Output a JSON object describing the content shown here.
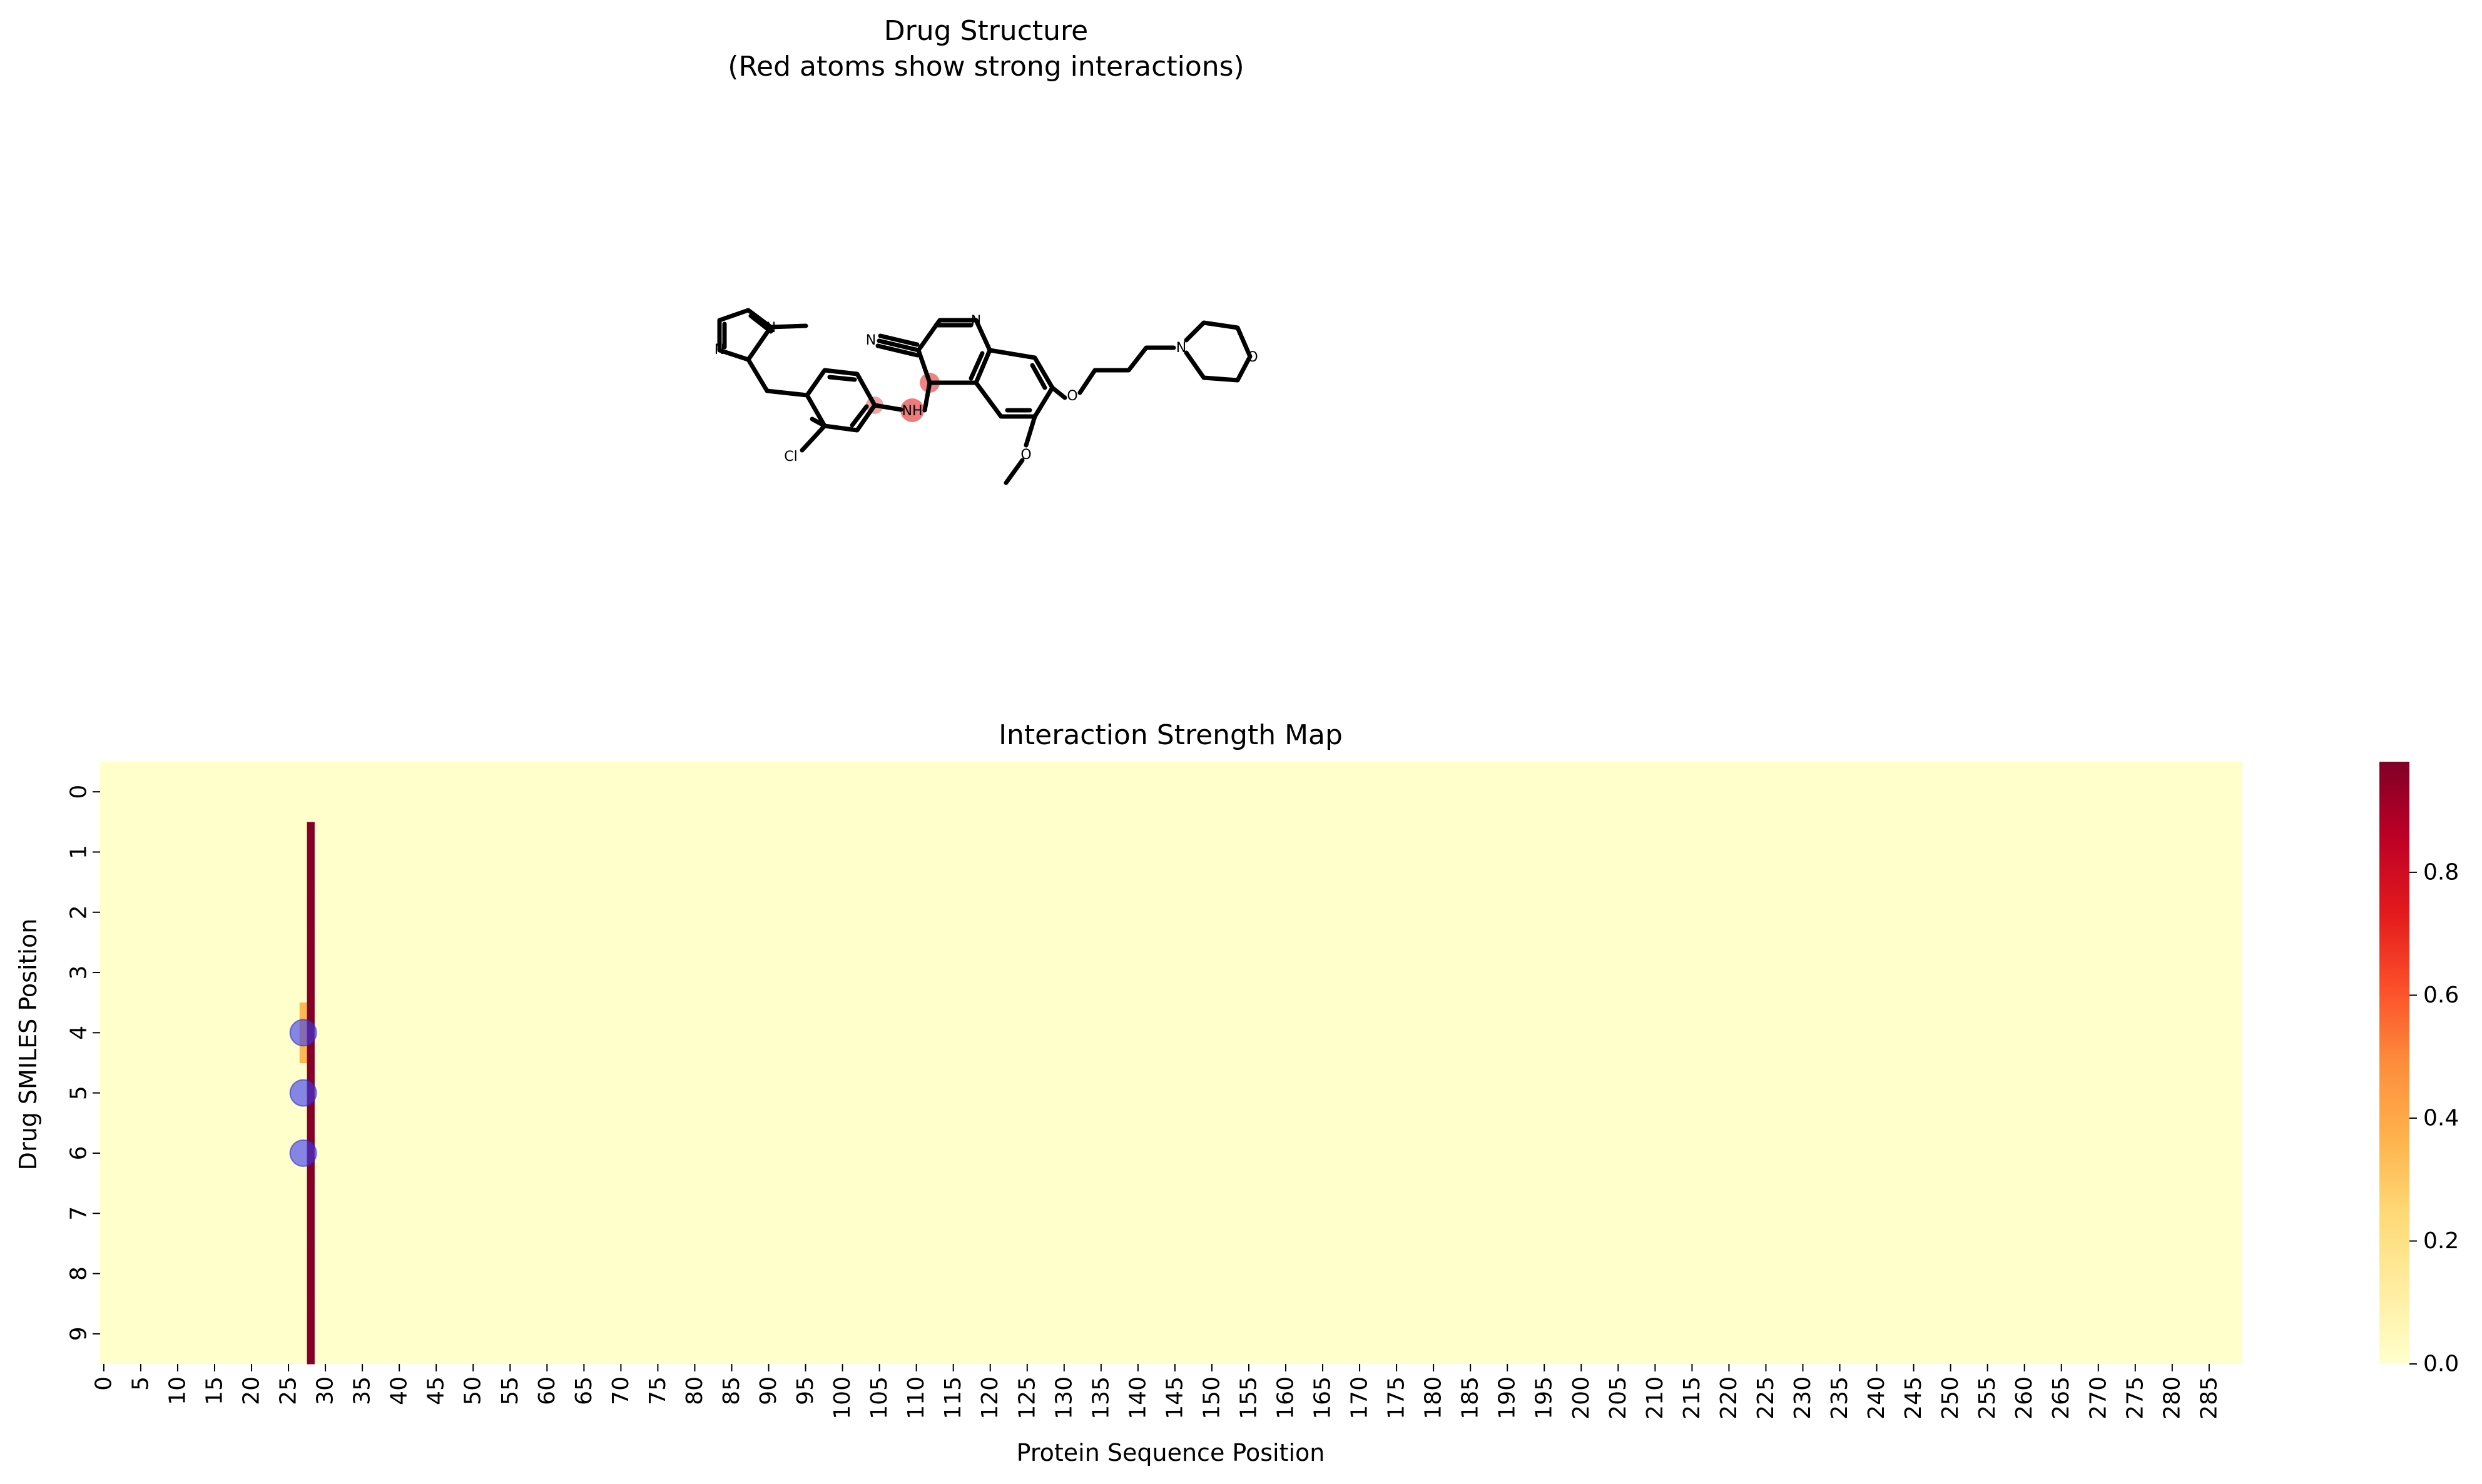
{
  "figure": {
    "top_panel": {
      "title_line1": "Drug Structure",
      "title_line2": "(Red atoms show strong interactions)",
      "atom_labels": {
        "n1": "N",
        "n2": "N",
        "n3": "N",
        "n4": "N",
        "n5": "N",
        "cl": "Cl",
        "nh": "NH",
        "o1": "O",
        "o2": "O",
        "o3": "O"
      },
      "highlight_color": "#e85a5a"
    },
    "bottom_panel": {
      "title": "Interaction Strength Map"
    }
  },
  "chart_data": {
    "type": "heatmap",
    "title": "Interaction Strength Map",
    "xlabel": "Protein Sequence Position",
    "ylabel": "Drug SMILES Position",
    "x_range": [
      0,
      289
    ],
    "y_range": [
      0,
      9
    ],
    "x_ticks": [
      0,
      5,
      10,
      15,
      20,
      25,
      30,
      35,
      40,
      45,
      50,
      55,
      60,
      65,
      70,
      75,
      80,
      85,
      90,
      95,
      100,
      105,
      110,
      115,
      120,
      125,
      130,
      135,
      140,
      145,
      150,
      155,
      160,
      165,
      170,
      175,
      180,
      185,
      190,
      195,
      200,
      205,
      210,
      215,
      220,
      225,
      230,
      235,
      240,
      245,
      250,
      255,
      260,
      265,
      270,
      275,
      280,
      285
    ],
    "y_ticks": [
      0,
      1,
      2,
      3,
      4,
      5,
      6,
      7,
      8,
      9
    ],
    "background_value": 0.0,
    "nonzero_cells": [
      {
        "x": 27,
        "y": 4,
        "value": 0.35
      },
      {
        "x": 28,
        "y": 1,
        "value": 0.97
      },
      {
        "x": 28,
        "y": 2,
        "value": 0.97
      },
      {
        "x": 28,
        "y": 3,
        "value": 0.97
      },
      {
        "x": 28,
        "y": 4,
        "value": 0.97
      },
      {
        "x": 28,
        "y": 5,
        "value": 0.97
      },
      {
        "x": 28,
        "y": 6,
        "value": 0.97
      },
      {
        "x": 28,
        "y": 7,
        "value": 0.97
      },
      {
        "x": 28,
        "y": 8,
        "value": 0.97
      },
      {
        "x": 28,
        "y": 9,
        "value": 0.97
      }
    ],
    "highlight_markers": [
      {
        "x": 27.5,
        "y": 4.5
      },
      {
        "x": 27.5,
        "y": 5.5
      },
      {
        "x": 27.5,
        "y": 6.5
      }
    ],
    "marker_color": "#3a3af0",
    "colorbar": {
      "cmap": "YlOrRd",
      "range": [
        0,
        0.98
      ],
      "ticks": [
        "0.0",
        "0.2",
        "0.4",
        "0.6",
        "0.8"
      ],
      "tick_values": [
        0.0,
        0.2,
        0.4,
        0.6,
        0.8
      ]
    }
  }
}
